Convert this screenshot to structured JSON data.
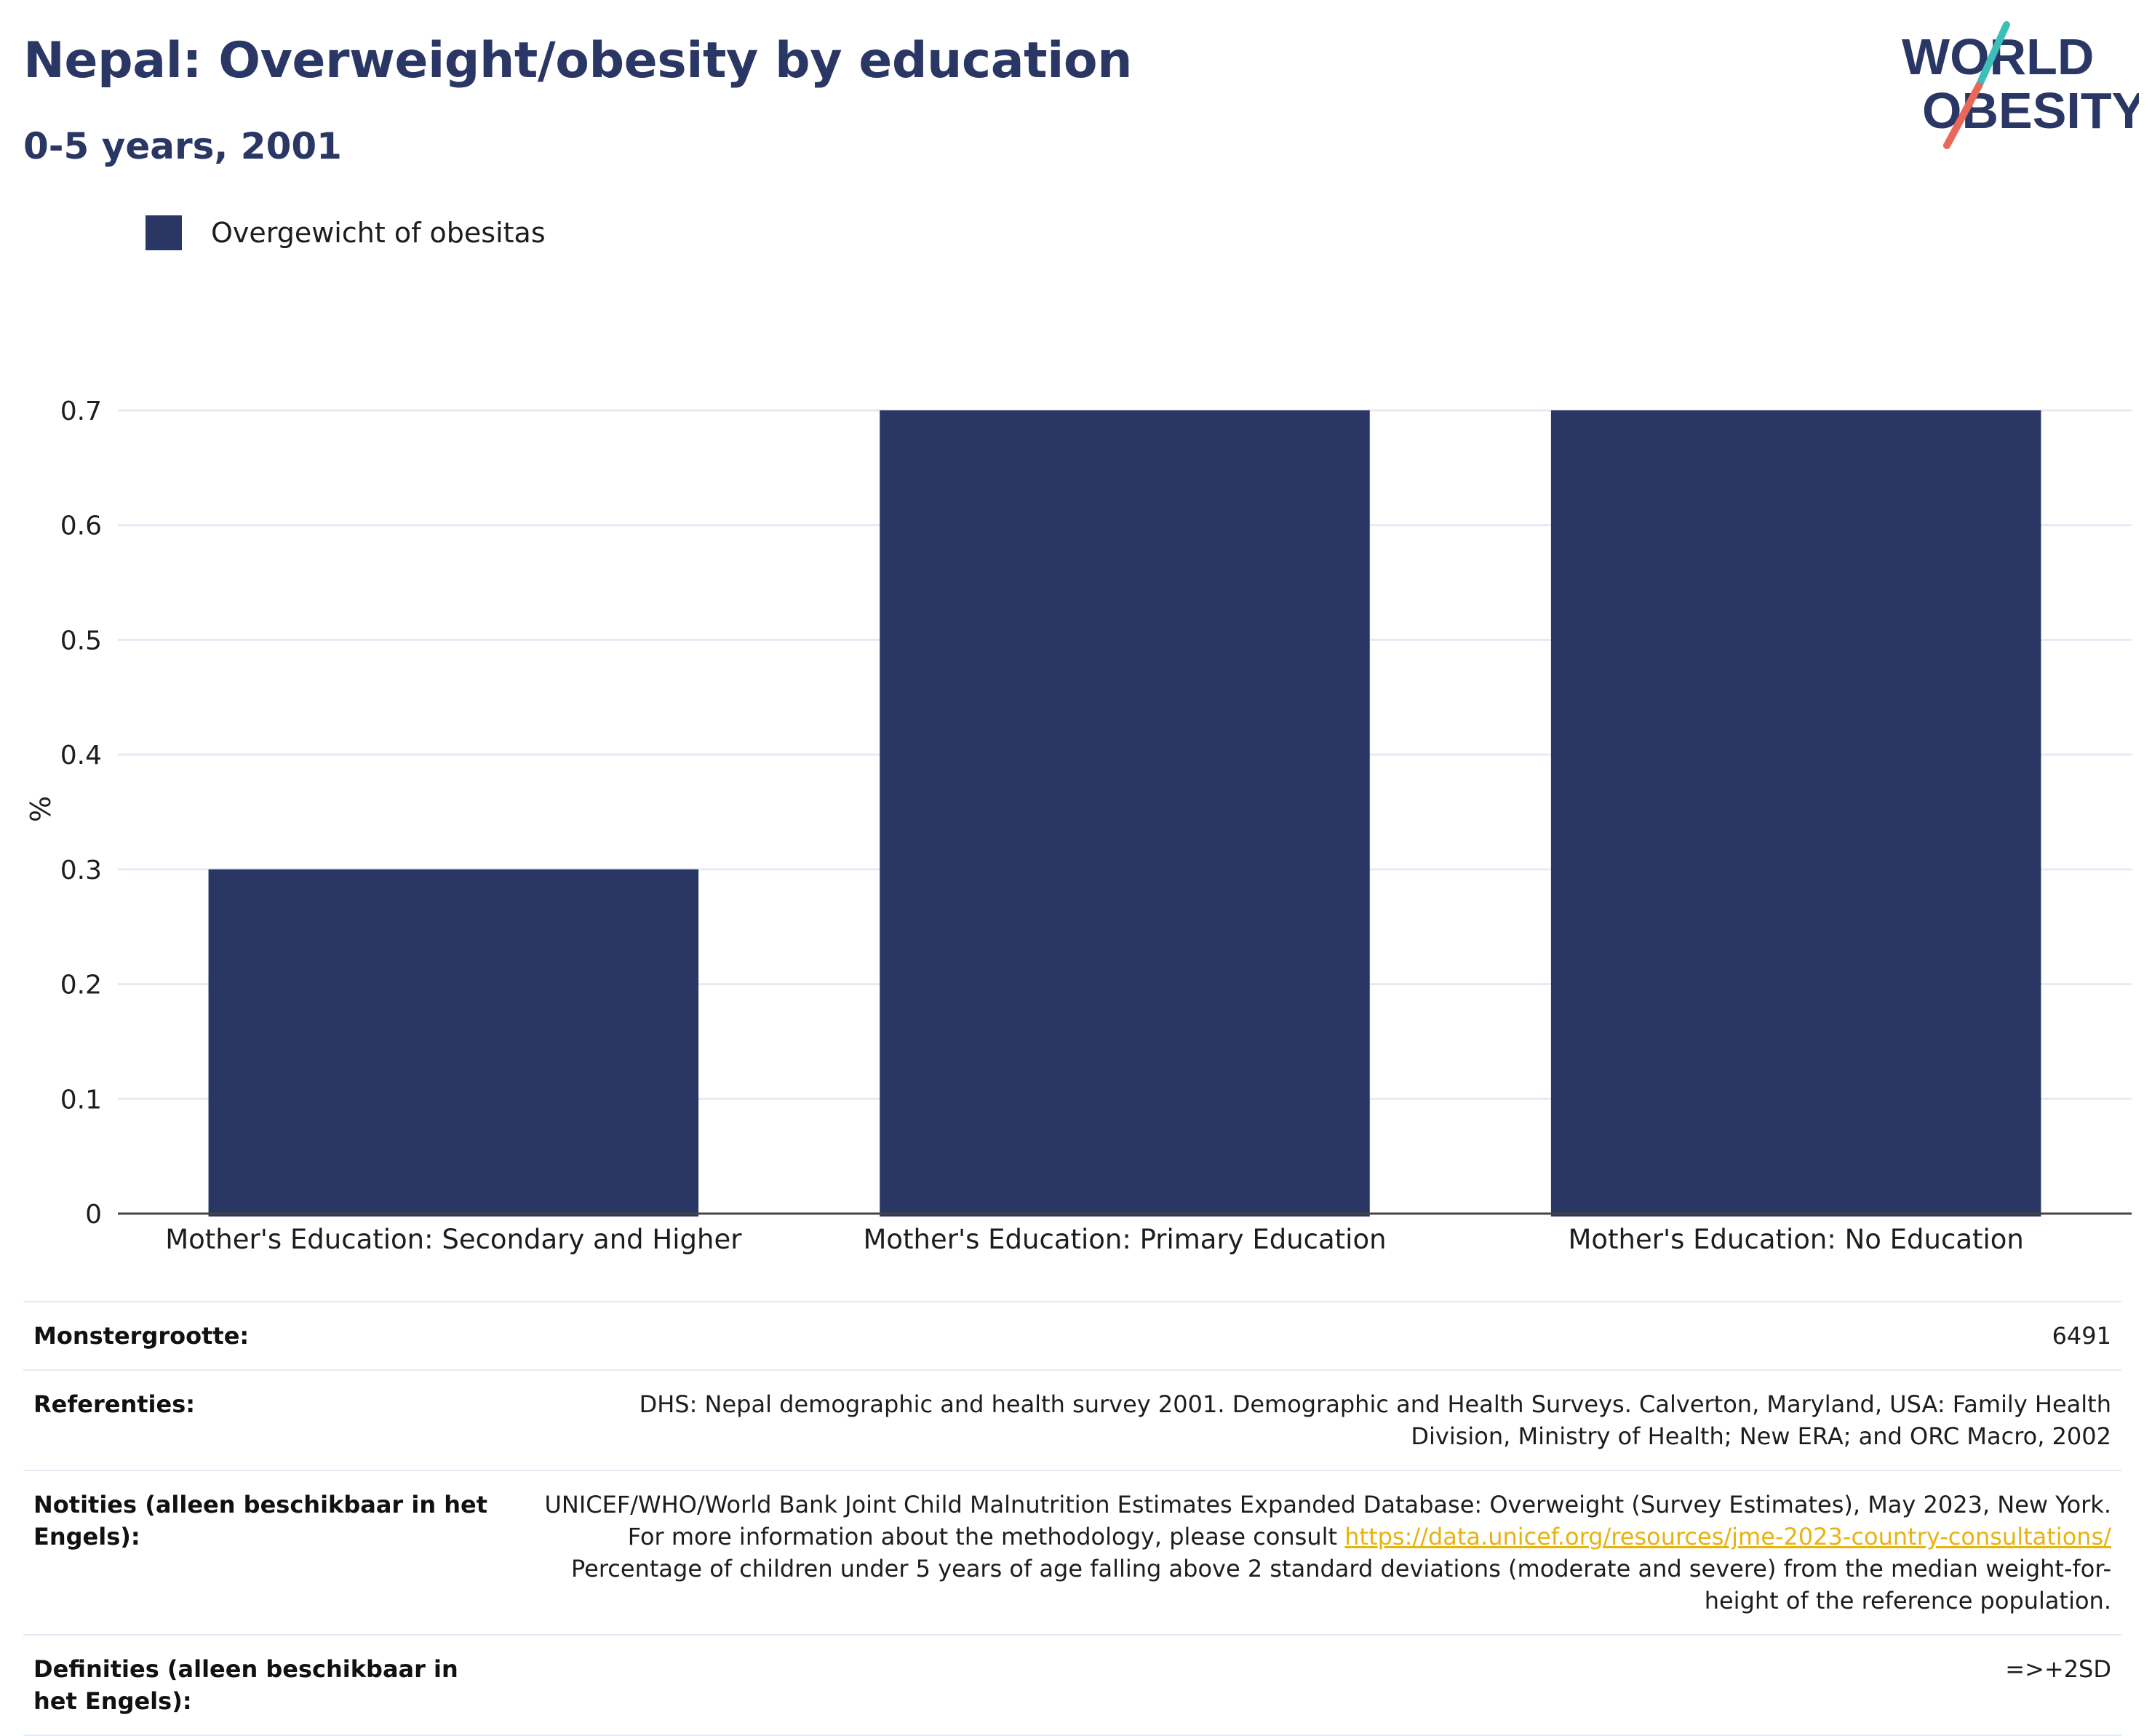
{
  "header": {
    "title": "Nepal: Overweight/obesity by education",
    "subtitle": "0-5 years, 2001",
    "logo_line1": "WORLD",
    "logo_line2": "OBESITY"
  },
  "legend": {
    "label": "Overgewicht of obesitas"
  },
  "colors": {
    "bar": "#2a3765",
    "accent_teal": "#3bbfb8",
    "accent_red": "#e8685a",
    "link": "#e8b210",
    "grid": "#e6eaf4"
  },
  "chart_data": {
    "type": "bar",
    "categories": [
      "Mother's Education: Secondary and Higher",
      "Mother's Education: Primary Education",
      "Mother's Education: No Education"
    ],
    "series": [
      {
        "name": "Overgewicht of obesitas",
        "values": [
          0.3,
          0.7,
          0.7
        ]
      }
    ],
    "ylabel": "%",
    "ylim": [
      0,
      0.7
    ],
    "yticks": [
      "0",
      "0.1",
      "0.2",
      "0.3",
      "0.4",
      "0.5",
      "0.6",
      "0.7"
    ],
    "grid": true,
    "legend_position": "top-left"
  },
  "info": {
    "sample_size": {
      "label": "Monstergrootte:",
      "value": "6491"
    },
    "references": {
      "label": "Referenties:",
      "value": "DHS: Nepal demographic and health survey 2001. Demographic and Health Surveys. Calverton, Maryland, USA: Family Health Division, Ministry of Health; New ERA; and ORC Macro, 2002"
    },
    "notes": {
      "label": "Notities (alleen beschikbaar in het Engels):",
      "text_before": "UNICEF/WHO/World Bank Joint Child Malnutrition Estimates Expanded Database: Overweight (Survey Estimates), May 2023, New York. For more information about the methodology, please consult ",
      "link": "https://data.unicef.org/resources/jme-2023-country-consultations/",
      "text_after": " Percentage of children under 5 years of age falling above 2 standard deviations (moderate and severe) from the median weight-for-height of the reference population."
    },
    "definitions": {
      "label": "Definities (alleen beschikbaar in het Engels):",
      "value": "=>+2SD"
    }
  }
}
